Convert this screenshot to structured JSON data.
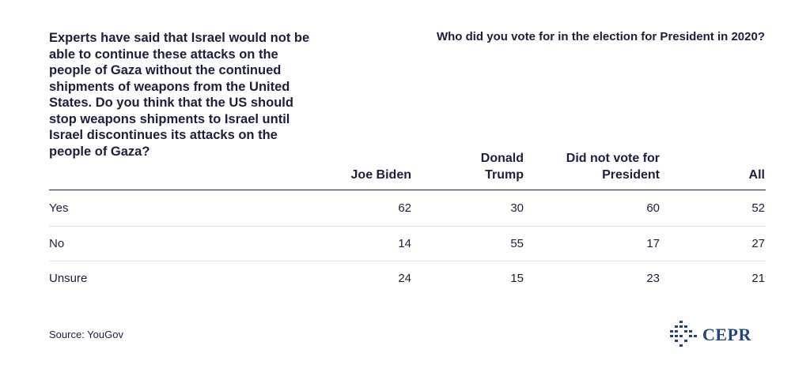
{
  "chart_data": {
    "type": "table",
    "question": "Experts have said that Israel would not be able to continue these attacks on the people of Gaza without the continued shipments of weapons from the United States. Do you think that the US should stop weapons shipments to Israel until Israel discontinues its attacks on the people of Gaza?",
    "super_header": "Who did you vote for in the election for President in 2020?",
    "columns": [
      "Joe Biden",
      "Donald Trump",
      "Did not vote for President",
      "All"
    ],
    "rows": [
      {
        "label": "Yes",
        "values": [
          62,
          30,
          60,
          52
        ]
      },
      {
        "label": "No",
        "values": [
          14,
          55,
          17,
          27
        ]
      },
      {
        "label": "Unsure",
        "values": [
          24,
          15,
          23,
          21
        ]
      }
    ]
  },
  "footer": {
    "source": "Source: YouGov",
    "logo_text": "CEPR"
  },
  "colors": {
    "text": "#1b1f3b",
    "logo": "#24457a",
    "rule": "#e4e4e8"
  }
}
